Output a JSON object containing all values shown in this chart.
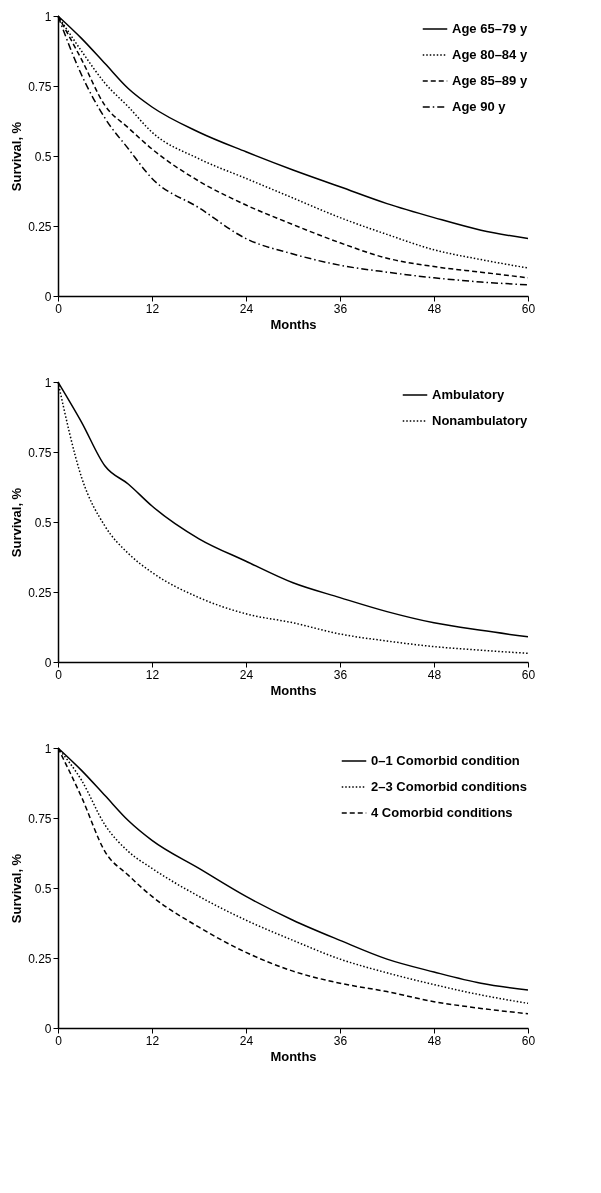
{
  "chart_data": [
    {
      "type": "line",
      "xlabel": "Months",
      "ylabel": "Survival, %",
      "x": [
        0,
        3,
        6,
        9,
        12,
        18,
        24,
        30,
        36,
        42,
        48,
        54,
        60
      ],
      "xlim": [
        0,
        60
      ],
      "xticks": [
        0,
        12,
        24,
        36,
        48,
        60
      ],
      "ylim": [
        0,
        1
      ],
      "yticks": [
        0,
        0.25,
        0.5,
        0.75,
        1
      ],
      "grid": false,
      "legend": "top right",
      "series": [
        {
          "name": "Age 65–79 y",
          "color": "#000000",
          "line_style": "solid",
          "values": [
            1,
            0.92,
            0.83,
            0.74,
            0.675,
            0.585,
            0.515,
            0.45,
            0.39,
            0.33,
            0.28,
            0.235,
            0.205
          ]
        },
        {
          "name": "Age 80–84 y",
          "color": "#000000",
          "line_style": "dotted",
          "values": [
            1,
            0.875,
            0.76,
            0.675,
            0.585,
            0.49,
            0.42,
            0.35,
            0.28,
            0.22,
            0.165,
            0.13,
            0.1
          ]
        },
        {
          "name": "Age 85–89 y",
          "color": "#000000",
          "line_style": "dashed",
          "values": [
            1,
            0.845,
            0.68,
            0.6,
            0.525,
            0.41,
            0.325,
            0.255,
            0.19,
            0.135,
            0.105,
            0.085,
            0.065
          ]
        },
        {
          "name": "Age 90 y",
          "color": "#000000",
          "line_style": "dashdot",
          "values": [
            1,
            0.79,
            0.635,
            0.525,
            0.42,
            0.315,
            0.205,
            0.15,
            0.11,
            0.085,
            0.065,
            0.05,
            0.04
          ]
        }
      ]
    },
    {
      "type": "line",
      "xlabel": "Months",
      "ylabel": "Survival, %",
      "x": [
        0,
        3,
        6,
        9,
        12,
        18,
        24,
        30,
        36,
        42,
        48,
        54,
        60
      ],
      "xlim": [
        0,
        60
      ],
      "xticks": [
        0,
        12,
        24,
        36,
        48,
        60
      ],
      "ylim": [
        0,
        1
      ],
      "yticks": [
        0,
        0.25,
        0.5,
        0.75,
        1
      ],
      "grid": false,
      "legend": "top right",
      "series": [
        {
          "name": "Ambulatory",
          "color": "#000000",
          "line_style": "solid",
          "values": [
            1,
            0.857,
            0.7,
            0.635,
            0.557,
            0.44,
            0.36,
            0.283,
            0.23,
            0.18,
            0.14,
            0.113,
            0.09
          ]
        },
        {
          "name": "Nonambulatory",
          "color": "#000000",
          "line_style": "dotted",
          "values": [
            1,
            0.66,
            0.485,
            0.387,
            0.32,
            0.23,
            0.172,
            0.14,
            0.1,
            0.075,
            0.055,
            0.042,
            0.031
          ]
        }
      ]
    },
    {
      "type": "line",
      "xlabel": "Months",
      "ylabel": "Survival, %",
      "x": [
        0,
        3,
        6,
        9,
        12,
        18,
        24,
        30,
        36,
        42,
        48,
        54,
        60
      ],
      "xlim": [
        0,
        60
      ],
      "xticks": [
        0,
        12,
        24,
        36,
        48,
        60
      ],
      "ylim": [
        0,
        1
      ],
      "yticks": [
        0,
        0.25,
        0.5,
        0.75,
        1
      ],
      "grid": false,
      "legend": "top right",
      "series": [
        {
          "name": "0–1 Comorbid condition",
          "color": "#000000",
          "line_style": "solid",
          "values": [
            1,
            0.92,
            0.83,
            0.74,
            0.67,
            0.57,
            0.47,
            0.385,
            0.313,
            0.246,
            0.2,
            0.16,
            0.136
          ]
        },
        {
          "name": "2–3 Comorbid conditions",
          "color": "#000000",
          "line_style": "dotted",
          "values": [
            1,
            0.885,
            0.725,
            0.63,
            0.57,
            0.47,
            0.385,
            0.313,
            0.246,
            0.197,
            0.155,
            0.118,
            0.088
          ]
        },
        {
          "name": "4 Comorbid conditions",
          "color": "#000000",
          "line_style": "dashed",
          "values": [
            1,
            0.825,
            0.63,
            0.545,
            0.47,
            0.36,
            0.27,
            0.203,
            0.16,
            0.13,
            0.094,
            0.07,
            0.051
          ]
        }
      ]
    }
  ]
}
